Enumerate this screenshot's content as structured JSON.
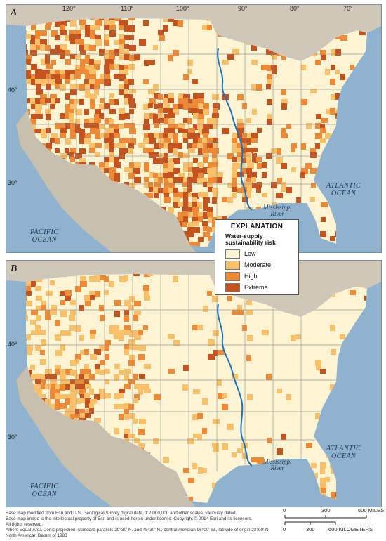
{
  "panels": [
    {
      "letter": "A",
      "longitudes": [
        "120°",
        "110°",
        "100°",
        "90°",
        "80°",
        "70°"
      ],
      "latitudes": [
        "40°",
        "30°"
      ],
      "oceans": {
        "pacific": "PACIFIC\nOCEAN",
        "atlantic": "ATLANTIC\nOCEAN"
      },
      "river_label": "Mississippi\nRiver"
    },
    {
      "letter": "B",
      "longitudes": [],
      "latitudes": [
        "40°",
        "30°"
      ],
      "oceans": {
        "pacific": "PACIFIC\nOCEAN",
        "atlantic": "ATLANTIC\nOCEAN"
      },
      "river_label": "Mississippi\nRiver"
    }
  ],
  "legend": {
    "title": "EXPLANATION",
    "subtitle": "Water-supply sustainability risk",
    "classes": [
      {
        "label": "Low",
        "color": "#fdf4d4"
      },
      {
        "label": "Moderate",
        "color": "#f9c06a"
      },
      {
        "label": "High",
        "color": "#ee8a35"
      },
      {
        "label": "Extreme",
        "color": "#c55320"
      }
    ]
  },
  "footnotes": [
    "Base map modified from Esri and U.S. Geological Survey digital data, 1:2,000,000 and other scales, variously dated.",
    "Base map image is the intellectual property of Esri and is used herein under license. Copyright © 2014 Esri and its licensors.",
    "All rights reserved.",
    "Albers Equal-Area Conic projection, standard parallels 29°30' N. and 45°30' N., central meridian 96°00' W., latitude of origin 23°00' N.",
    "North American Datum of 1983"
  ],
  "scale": {
    "miles": [
      "0",
      "300",
      "600 MILES"
    ],
    "km": [
      "0",
      "300",
      "600 KILOMETERS"
    ]
  },
  "colors": {
    "water": "#8fb3cf",
    "land_outside": "#c9c2b4",
    "state_line": "#8a8a8a",
    "river": "#1f6fb8"
  }
}
